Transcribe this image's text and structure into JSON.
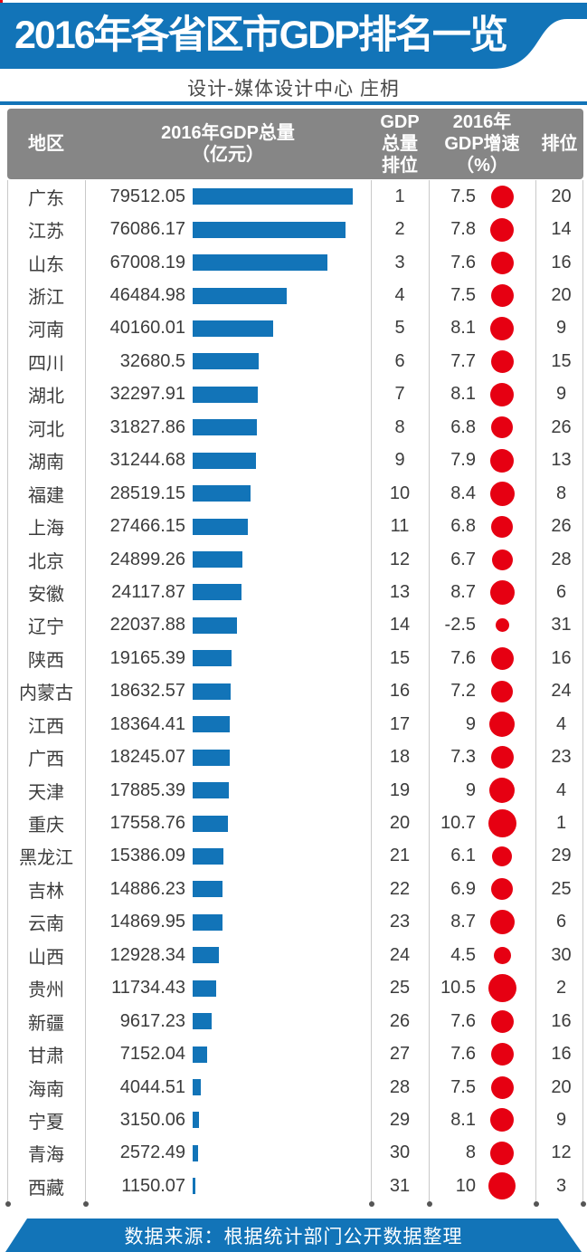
{
  "header": {
    "title": "2016年各省区市GDP排名一览",
    "subtitle": "设计-媒体设计中心  庄枂"
  },
  "table": {
    "headers": {
      "region": [
        "地区"
      ],
      "gdp": [
        "2016年GDP总量",
        "（亿元）"
      ],
      "gdp_rank": [
        "GDP",
        "总量",
        "排位"
      ],
      "growth": [
        "2016年",
        "GDP增速",
        "（%）"
      ],
      "growth_rank": [
        "排位"
      ]
    }
  },
  "footer": {
    "text": "数据来源：根据统计部门公开数据整理"
  },
  "colors": {
    "blue": "#1274B8",
    "red": "#E60012",
    "header_gray": "#868686",
    "text": "#3C3C3C",
    "divider": "#C9C9C9",
    "dot": "#555555"
  },
  "chart_data": {
    "type": "bar",
    "title": "2016年各省区市GDP排名一览",
    "unit": "亿元",
    "note": "bar length proportional to GDP total; red circle size proportional to GDP growth rate",
    "rows": [
      {
        "region": "广东",
        "gdp": "79512.05",
        "gdp_rank": "1",
        "growth": "7.5",
        "growth_rank": "20"
      },
      {
        "region": "江苏",
        "gdp": "76086.17",
        "gdp_rank": "2",
        "growth": "7.8",
        "growth_rank": "14"
      },
      {
        "region": "山东",
        "gdp": "67008.19",
        "gdp_rank": "3",
        "growth": "7.6",
        "growth_rank": "16"
      },
      {
        "region": "浙江",
        "gdp": "46484.98",
        "gdp_rank": "4",
        "growth": "7.5",
        "growth_rank": "20"
      },
      {
        "region": "河南",
        "gdp": "40160.01",
        "gdp_rank": "5",
        "growth": "8.1",
        "growth_rank": "9"
      },
      {
        "region": "四川",
        "gdp": "32680.5",
        "gdp_rank": "6",
        "growth": "7.7",
        "growth_rank": "15"
      },
      {
        "region": "湖北",
        "gdp": "32297.91",
        "gdp_rank": "7",
        "growth": "8.1",
        "growth_rank": "9"
      },
      {
        "region": "河北",
        "gdp": "31827.86",
        "gdp_rank": "8",
        "growth": "6.8",
        "growth_rank": "26"
      },
      {
        "region": "湖南",
        "gdp": "31244.68",
        "gdp_rank": "9",
        "growth": "7.9",
        "growth_rank": "13"
      },
      {
        "region": "福建",
        "gdp": "28519.15",
        "gdp_rank": "10",
        "growth": "8.4",
        "growth_rank": "8"
      },
      {
        "region": "上海",
        "gdp": "27466.15",
        "gdp_rank": "11",
        "growth": "6.8",
        "growth_rank": "26"
      },
      {
        "region": "北京",
        "gdp": "24899.26",
        "gdp_rank": "12",
        "growth": "6.7",
        "growth_rank": "28"
      },
      {
        "region": "安徽",
        "gdp": "24117.87",
        "gdp_rank": "13",
        "growth": "8.7",
        "growth_rank": "6"
      },
      {
        "region": "辽宁",
        "gdp": "22037.88",
        "gdp_rank": "14",
        "growth": "-2.5",
        "growth_rank": "31"
      },
      {
        "region": "陕西",
        "gdp": "19165.39",
        "gdp_rank": "15",
        "growth": "7.6",
        "growth_rank": "16"
      },
      {
        "region": "内蒙古",
        "gdp": "18632.57",
        "gdp_rank": "16",
        "growth": "7.2",
        "growth_rank": "24"
      },
      {
        "region": "江西",
        "gdp": "18364.41",
        "gdp_rank": "17",
        "growth": "9",
        "growth_rank": "4"
      },
      {
        "region": "广西",
        "gdp": "18245.07",
        "gdp_rank": "18",
        "growth": "7.3",
        "growth_rank": "23"
      },
      {
        "region": "天津",
        "gdp": "17885.39",
        "gdp_rank": "19",
        "growth": "9",
        "growth_rank": "4"
      },
      {
        "region": "重庆",
        "gdp": "17558.76",
        "gdp_rank": "20",
        "growth": "10.7",
        "growth_rank": "1"
      },
      {
        "region": "黑龙江",
        "gdp": "15386.09",
        "gdp_rank": "21",
        "growth": "6.1",
        "growth_rank": "29"
      },
      {
        "region": "吉林",
        "gdp": "14886.23",
        "gdp_rank": "22",
        "growth": "6.9",
        "growth_rank": "25"
      },
      {
        "region": "云南",
        "gdp": "14869.95",
        "gdp_rank": "23",
        "growth": "8.7",
        "growth_rank": "6"
      },
      {
        "region": "山西",
        "gdp": "12928.34",
        "gdp_rank": "24",
        "growth": "4.5",
        "growth_rank": "30"
      },
      {
        "region": "贵州",
        "gdp": "11734.43",
        "gdp_rank": "25",
        "growth": "10.5",
        "growth_rank": "2"
      },
      {
        "region": "新疆",
        "gdp": "9617.23",
        "gdp_rank": "26",
        "growth": "7.6",
        "growth_rank": "16"
      },
      {
        "region": "甘肃",
        "gdp": "7152.04",
        "gdp_rank": "27",
        "growth": "7.6",
        "growth_rank": "16"
      },
      {
        "region": "海南",
        "gdp": "4044.51",
        "gdp_rank": "28",
        "growth": "7.5",
        "growth_rank": "20"
      },
      {
        "region": "宁夏",
        "gdp": "3150.06",
        "gdp_rank": "29",
        "growth": "8.1",
        "growth_rank": "9"
      },
      {
        "region": "青海",
        "gdp": "2572.49",
        "gdp_rank": "30",
        "growth": "8",
        "growth_rank": "12"
      },
      {
        "region": "西藏",
        "gdp": "1150.07",
        "gdp_rank": "31",
        "growth": "10",
        "growth_rank": "3"
      }
    ]
  }
}
